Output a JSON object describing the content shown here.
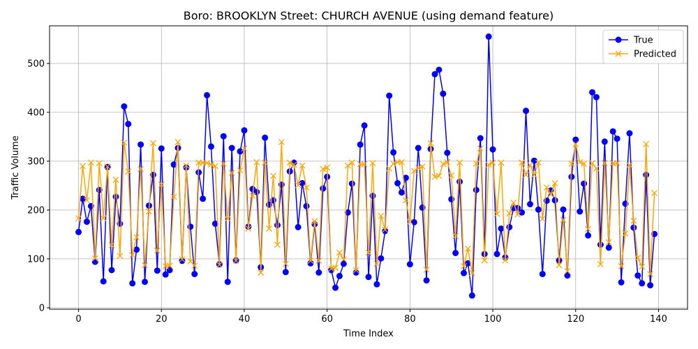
{
  "chart_data": {
    "type": "line",
    "title": "Boro: BROOKLYN Street: CHURCH AVENUE (using demand feature)",
    "xlabel": "Time Index",
    "ylabel": "Traffic Volume",
    "xlim": [
      -7,
      147
    ],
    "ylim": [
      -3,
      577
    ],
    "xticks": [
      0,
      20,
      40,
      60,
      80,
      100,
      120,
      140
    ],
    "yticks": [
      0,
      100,
      200,
      300,
      400,
      500
    ],
    "grid": true,
    "legend_position": "top-right",
    "series": [
      {
        "name": "True",
        "color": "#0000ff",
        "marker": "circle",
        "values": [
          155,
          223,
          176,
          208,
          94,
          241,
          54,
          288,
          77,
          227,
          172,
          412,
          376,
          50,
          119,
          334,
          53,
          209,
          272,
          76,
          326,
          68,
          77,
          293,
          327,
          96,
          287,
          166,
          69,
          277,
          223,
          435,
          330,
          172,
          89,
          351,
          53,
          327,
          97,
          320,
          363,
          166,
          243,
          237,
          83,
          348,
          211,
          220,
          169,
          252,
          73,
          279,
          297,
          165,
          255,
          208,
          91,
          171,
          72,
          244,
          268,
          77,
          41,
          65,
          90,
          195,
          254,
          72,
          334,
          373,
          63,
          229,
          48,
          101,
          157,
          434,
          318,
          255,
          236,
          266,
          89,
          175,
          327,
          205,
          56,
          325,
          478,
          487,
          438,
          317,
          222,
          112,
          258,
          71,
          91,
          25,
          241,
          347,
          110,
          555,
          324,
          110,
          162,
          103,
          165,
          204,
          204,
          195,
          403,
          212,
          301,
          201,
          69,
          219,
          240,
          220,
          97,
          201,
          66,
          268,
          344,
          197,
          254,
          148,
          441,
          431,
          129,
          340,
          123,
          361,
          346,
          52,
          213,
          357,
          164,
          66,
          50,
          272,
          46,
          151
        ]
      },
      {
        "name": "Predicted",
        "color": "#ffa500",
        "marker": "x",
        "values": [
          183,
          290,
          220,
          297,
          101,
          296,
          183,
          289,
          128,
          262,
          106,
          338,
          279,
          108,
          144,
          284,
          87,
          197,
          337,
          117,
          252,
          85,
          86,
          227,
          339,
          99,
          291,
          95,
          86,
          297,
          297,
          296,
          293,
          290,
          88,
          295,
          182,
          276,
          96,
          281,
          326,
          162,
          229,
          298,
          72,
          297,
          162,
          270,
          129,
          339,
          90,
          297,
          293,
          251,
          291,
          246,
          96,
          177,
          96,
          284,
          287,
          80,
          82,
          113,
          99,
          291,
          297,
          77,
          294,
          294,
          113,
          296,
          90,
          188,
          160,
          285,
          295,
          298,
          298,
          220,
          176,
          280,
          286,
          289,
          78,
          337,
          268,
          270,
          294,
          298,
          271,
          147,
          297,
          85,
          121,
          71,
          295,
          326,
          97,
          293,
          297,
          192,
          297,
          97,
          193,
          215,
          191,
          297,
          272,
          292,
          272,
          297,
          182,
          246,
          232,
          255,
          87,
          180,
          75,
          295,
          335,
          298,
          295,
          161,
          296,
          285,
          89,
          296,
          134,
          296,
          296,
          85,
          152,
          292,
          178,
          102,
          84,
          335,
          69,
          235
        ]
      }
    ]
  }
}
